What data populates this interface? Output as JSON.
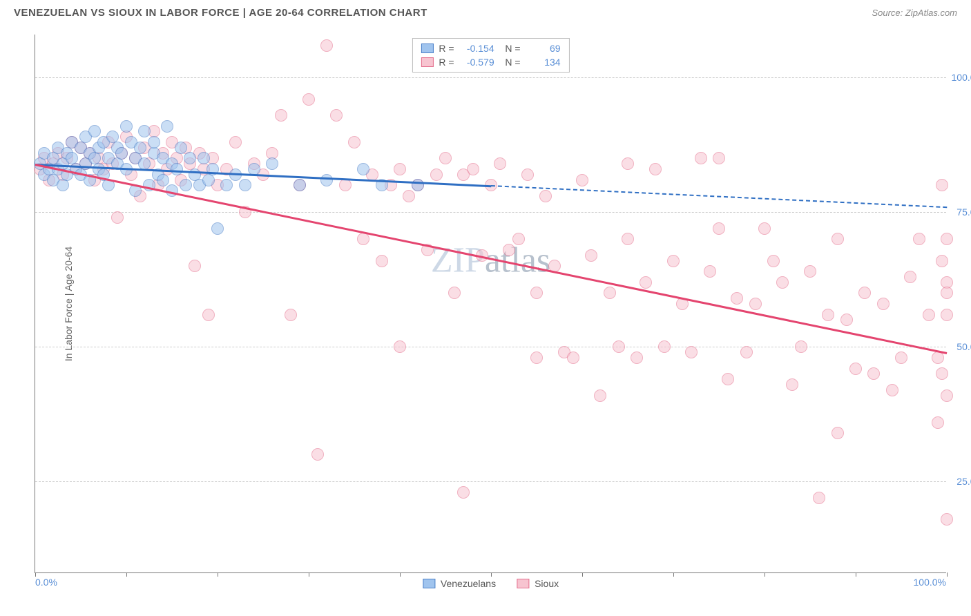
{
  "header": {
    "title": "VENEZUELAN VS SIOUX IN LABOR FORCE | AGE 20-64 CORRELATION CHART",
    "source": "Source: ZipAtlas.com"
  },
  "chart": {
    "type": "scatter",
    "ylabel": "In Labor Force | Age 20-64",
    "xlim": [
      0,
      100
    ],
    "ylim": [
      8,
      108
    ],
    "x_axis_label_left": "0.0%",
    "x_axis_label_right": "100.0%",
    "yticks": [
      {
        "pos": 25,
        "label": "25.0%"
      },
      {
        "pos": 50,
        "label": "50.0%"
      },
      {
        "pos": 75,
        "label": "75.0%"
      },
      {
        "pos": 100,
        "label": "100.0%"
      }
    ],
    "xticks_minor": [
      0,
      10,
      20,
      30,
      40,
      50,
      60,
      70,
      80,
      90,
      100
    ],
    "background_color": "#ffffff",
    "grid_color": "#cccccc",
    "marker_radius": 9,
    "marker_opacity": 0.55,
    "watermark": "ZIPatlas",
    "series": [
      {
        "name": "Venezuelans",
        "fill": "#a0c4ee",
        "stroke": "#4a7fc8",
        "trend_color": "#2f6fc3",
        "R": "-0.154",
        "N": "69",
        "trend": {
          "x1": 0,
          "y1": 84,
          "x2": 50,
          "y2": 80
        },
        "trend_dash": {
          "x1": 50,
          "y1": 80,
          "x2": 100,
          "y2": 76
        },
        "points": [
          [
            0.5,
            84
          ],
          [
            1,
            82
          ],
          [
            1,
            86
          ],
          [
            1.5,
            83
          ],
          [
            2,
            85
          ],
          [
            2,
            81
          ],
          [
            2.5,
            87
          ],
          [
            2.5,
            83
          ],
          [
            3,
            84
          ],
          [
            3,
            80
          ],
          [
            3.5,
            86
          ],
          [
            3.5,
            82
          ],
          [
            4,
            85
          ],
          [
            4,
            88
          ],
          [
            4.5,
            83
          ],
          [
            5,
            87
          ],
          [
            5,
            82
          ],
          [
            5.5,
            84
          ],
          [
            5.5,
            89
          ],
          [
            6,
            86
          ],
          [
            6,
            81
          ],
          [
            6.5,
            85
          ],
          [
            6.5,
            90
          ],
          [
            7,
            83
          ],
          [
            7,
            87
          ],
          [
            7.5,
            82
          ],
          [
            7.5,
            88
          ],
          [
            8,
            85
          ],
          [
            8,
            80
          ],
          [
            8.5,
            89
          ],
          [
            9,
            84
          ],
          [
            9,
            87
          ],
          [
            9.5,
            86
          ],
          [
            10,
            91
          ],
          [
            10,
            83
          ],
          [
            10.5,
            88
          ],
          [
            11,
            85
          ],
          [
            11,
            79
          ],
          [
            11.5,
            87
          ],
          [
            12,
            84
          ],
          [
            12,
            90
          ],
          [
            12.5,
            80
          ],
          [
            13,
            86
          ],
          [
            13,
            88
          ],
          [
            13.5,
            82
          ],
          [
            14,
            85
          ],
          [
            14,
            81
          ],
          [
            14.5,
            91
          ],
          [
            15,
            84
          ],
          [
            15,
            79
          ],
          [
            15.5,
            83
          ],
          [
            16,
            87
          ],
          [
            16.5,
            80
          ],
          [
            17,
            85
          ],
          [
            17.5,
            82
          ],
          [
            18,
            80
          ],
          [
            18.5,
            85
          ],
          [
            19,
            81
          ],
          [
            19.5,
            83
          ],
          [
            20,
            72
          ],
          [
            21,
            80
          ],
          [
            22,
            82
          ],
          [
            23,
            80
          ],
          [
            24,
            83
          ],
          [
            26,
            84
          ],
          [
            29,
            80
          ],
          [
            32,
            81
          ],
          [
            36,
            83
          ],
          [
            38,
            80
          ],
          [
            42,
            80
          ]
        ]
      },
      {
        "name": "Sioux",
        "fill": "#f7c4d0",
        "stroke": "#e4708e",
        "trend_color": "#e4456f",
        "R": "-0.579",
        "N": "134",
        "trend": {
          "x1": 0,
          "y1": 84,
          "x2": 100,
          "y2": 49
        },
        "points": [
          [
            0.5,
            83
          ],
          [
            1,
            85
          ],
          [
            1.5,
            81
          ],
          [
            2,
            84
          ],
          [
            2.5,
            86
          ],
          [
            3,
            82
          ],
          [
            3.5,
            85
          ],
          [
            4,
            88
          ],
          [
            4.5,
            83
          ],
          [
            5,
            87
          ],
          [
            5.5,
            84
          ],
          [
            6,
            86
          ],
          [
            6.5,
            81
          ],
          [
            7,
            85
          ],
          [
            7.5,
            83
          ],
          [
            8,
            88
          ],
          [
            8.5,
            84
          ],
          [
            9,
            74
          ],
          [
            9.5,
            86
          ],
          [
            10,
            89
          ],
          [
            10.5,
            82
          ],
          [
            11,
            85
          ],
          [
            11.5,
            78
          ],
          [
            12,
            87
          ],
          [
            12.5,
            84
          ],
          [
            13,
            90
          ],
          [
            13.5,
            80
          ],
          [
            14,
            86
          ],
          [
            14.5,
            83
          ],
          [
            15,
            88
          ],
          [
            15.5,
            85
          ],
          [
            16,
            81
          ],
          [
            16.5,
            87
          ],
          [
            17,
            84
          ],
          [
            17.5,
            65
          ],
          [
            18,
            86
          ],
          [
            18.5,
            83
          ],
          [
            19,
            56
          ],
          [
            19.5,
            85
          ],
          [
            20,
            80
          ],
          [
            21,
            83
          ],
          [
            22,
            88
          ],
          [
            23,
            75
          ],
          [
            24,
            84
          ],
          [
            25,
            82
          ],
          [
            26,
            86
          ],
          [
            27,
            93
          ],
          [
            28,
            56
          ],
          [
            29,
            80
          ],
          [
            30,
            96
          ],
          [
            31,
            30
          ],
          [
            32,
            106
          ],
          [
            33,
            93
          ],
          [
            34,
            80
          ],
          [
            35,
            88
          ],
          [
            36,
            70
          ],
          [
            37,
            82
          ],
          [
            38,
            66
          ],
          [
            39,
            80
          ],
          [
            40,
            83
          ],
          [
            41,
            78
          ],
          [
            42,
            80
          ],
          [
            43,
            68
          ],
          [
            44,
            82
          ],
          [
            45,
            85
          ],
          [
            46,
            60
          ],
          [
            47,
            23
          ],
          [
            48,
            83
          ],
          [
            49,
            67
          ],
          [
            50,
            80
          ],
          [
            51,
            84
          ],
          [
            52,
            68
          ],
          [
            53,
            70
          ],
          [
            54,
            82
          ],
          [
            55,
            48
          ],
          [
            56,
            78
          ],
          [
            57,
            65
          ],
          [
            58,
            49
          ],
          [
            59,
            48
          ],
          [
            60,
            81
          ],
          [
            61,
            67
          ],
          [
            62,
            41
          ],
          [
            63,
            60
          ],
          [
            64,
            50
          ],
          [
            65,
            70
          ],
          [
            66,
            48
          ],
          [
            67,
            62
          ],
          [
            68,
            83
          ],
          [
            69,
            50
          ],
          [
            70,
            66
          ],
          [
            71,
            58
          ],
          [
            72,
            49
          ],
          [
            73,
            85
          ],
          [
            74,
            64
          ],
          [
            75,
            72
          ],
          [
            76,
            44
          ],
          [
            77,
            59
          ],
          [
            78,
            49
          ],
          [
            79,
            58
          ],
          [
            80,
            72
          ],
          [
            81,
            66
          ],
          [
            82,
            62
          ],
          [
            83,
            43
          ],
          [
            84,
            50
          ],
          [
            85,
            64
          ],
          [
            86,
            22
          ],
          [
            87,
            56
          ],
          [
            88,
            70
          ],
          [
            89,
            55
          ],
          [
            90,
            46
          ],
          [
            91,
            60
          ],
          [
            92,
            45
          ],
          [
            93,
            58
          ],
          [
            94,
            42
          ],
          [
            95,
            48
          ],
          [
            96,
            63
          ],
          [
            97,
            70
          ],
          [
            98,
            56
          ],
          [
            99,
            36
          ],
          [
            99,
            48
          ],
          [
            99.5,
            80
          ],
          [
            99.5,
            66
          ],
          [
            99.5,
            45
          ],
          [
            100,
            62
          ],
          [
            100,
            70
          ],
          [
            100,
            41
          ],
          [
            100,
            18
          ],
          [
            100,
            56
          ],
          [
            100,
            60
          ],
          [
            88,
            34
          ],
          [
            75,
            85
          ],
          [
            65,
            84
          ],
          [
            55,
            60
          ],
          [
            47,
            82
          ],
          [
            40,
            50
          ]
        ]
      }
    ],
    "stats_box": {
      "rows": [
        {
          "swatch_fill": "#a0c4ee",
          "swatch_stroke": "#4a7fc8",
          "R": "-0.154",
          "N": "69"
        },
        {
          "swatch_fill": "#f7c4d0",
          "swatch_stroke": "#e4708e",
          "R": "-0.579",
          "N": "134"
        }
      ]
    },
    "legend": [
      {
        "label": "Venezuelans",
        "fill": "#a0c4ee",
        "stroke": "#4a7fc8"
      },
      {
        "label": "Sioux",
        "fill": "#f7c4d0",
        "stroke": "#e4708e"
      }
    ]
  }
}
